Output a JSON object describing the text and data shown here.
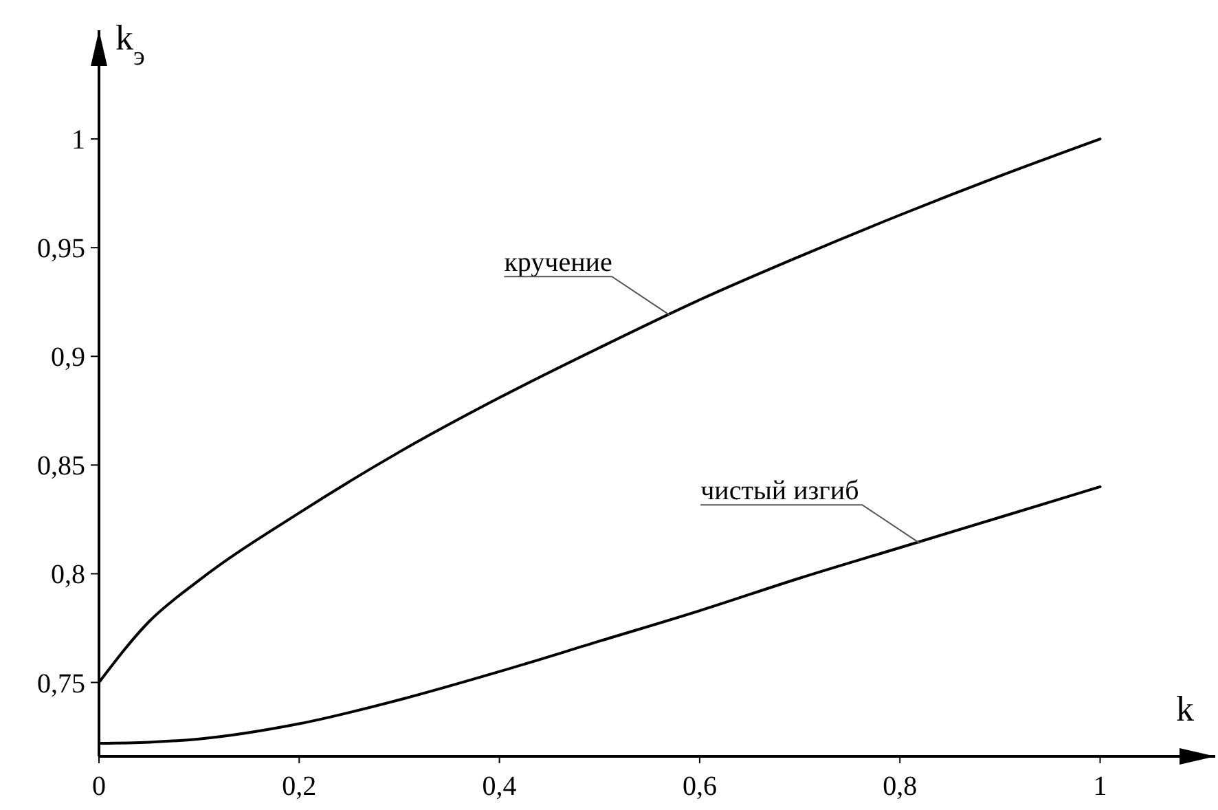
{
  "chart_data": {
    "type": "line",
    "xlabel": "k",
    "ylabel": "k$_{э}$",
    "x": [
      0,
      0.05,
      0.1,
      0.2,
      0.3,
      0.4,
      0.5,
      0.6,
      0.7,
      0.8,
      0.9,
      1
    ],
    "series": [
      {
        "color": "#000000",
        "values": [
          0.75,
          0.778,
          0.797,
          0.828,
          0.856,
          0.881,
          0.904,
          0.926,
          0.946,
          0.965,
          0.983,
          1.0
        ]
      },
      {
        "color": "#000000",
        "values": [
          0.722,
          0.7225,
          0.724,
          0.731,
          0.742,
          0.755,
          0.769,
          0.783,
          0.798,
          0.812,
          0.826,
          0.84
        ]
      }
    ],
    "annotations": [
      {
        "text": "кручение",
        "x": 0.57,
        "y": 0.919
      },
      {
        "text": "чистый изгиб",
        "x": 0.82,
        "y": 0.814
      }
    ],
    "xlim": [
      0,
      1.115
    ],
    "ylim": [
      0.716,
      1.05
    ],
    "xticks": [
      0,
      {
        "value": 0.2,
        "label": "0,2"
      },
      {
        "value": 0.4,
        "label": "0,4"
      },
      {
        "value": 0.6,
        "label": "0,6"
      },
      {
        "value": 0.8,
        "label": "0,8"
      },
      1
    ],
    "yticks": [
      {
        "value": 0.75,
        "label": "0,75"
      },
      {
        "value": 0.8,
        "label": "0,8"
      },
      {
        "value": 0.85,
        "label": "0,85"
      },
      {
        "value": 0.9,
        "label": "0,9"
      },
      {
        "value": 0.95,
        "label": "0,95"
      },
      1
    ],
    "grid": false,
    "marker": "none",
    "line_style": "solid"
  }
}
